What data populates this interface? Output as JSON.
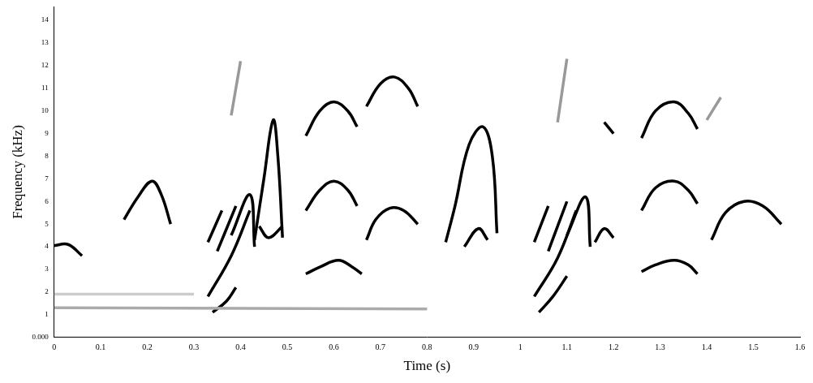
{
  "chart_data": {
    "type": "line",
    "x_label": "Time (s)",
    "y_label": "Frequency (kHz)",
    "xlim": [
      0,
      1.6
    ],
    "xticks": [
      0,
      0.1,
      0.2,
      0.3,
      0.4,
      0.5,
      0.6,
      0.7,
      0.8,
      0.9,
      1,
      1.1,
      1.2,
      1.3,
      1.4,
      1.5,
      1.6
    ],
    "ylim": [
      0,
      14.6
    ],
    "yticks": [
      {
        "value": 0,
        "label": "0.000"
      },
      1,
      2,
      3,
      4,
      5,
      6,
      7,
      8,
      9,
      10,
      11,
      12,
      13,
      14
    ],
    "grid": false,
    "series": [
      {
        "color": "#aaaaaa",
        "x": [
          0,
          0.8
        ],
        "values": [
          1.3,
          1.25
        ]
      },
      {
        "color": "#cccccc",
        "x": [
          0,
          0.3
        ],
        "values": [
          1.9,
          1.9
        ]
      },
      {
        "color": "#000000",
        "x": [
          0,
          0.03,
          0.06
        ],
        "values": [
          4.05,
          4.1,
          3.6
        ]
      },
      {
        "color": "#000000",
        "x": [
          0.15,
          0.18,
          0.21,
          0.23,
          0.25
        ],
        "values": [
          5.2,
          6.2,
          6.9,
          6.3,
          5.0
        ]
      },
      {
        "color": "#000000",
        "x": [
          0.33,
          0.38,
          0.42
        ],
        "values": [
          1.8,
          3.6,
          5.6
        ]
      },
      {
        "color": "#000000",
        "x": [
          0.34,
          0.37,
          0.39
        ],
        "values": [
          1.1,
          1.6,
          2.2
        ]
      },
      {
        "color": "#000000",
        "x": [
          0.33,
          0.36
        ],
        "values": [
          4.2,
          5.6
        ]
      },
      {
        "color": "#000000",
        "x": [
          0.35,
          0.39
        ],
        "values": [
          3.8,
          5.8
        ]
      },
      {
        "color": "#000000",
        "x": [
          0.38,
          0.42,
          0.43
        ],
        "values": [
          4.5,
          6.3,
          4.0
        ]
      },
      {
        "color": "#999999",
        "x": [
          0.38,
          0.4
        ],
        "values": [
          9.8,
          12.2
        ]
      },
      {
        "color": "#000000",
        "x": [
          0.43,
          0.45,
          0.47,
          0.48,
          0.49
        ],
        "values": [
          4.3,
          7.0,
          9.6,
          8.0,
          4.4
        ]
      },
      {
        "color": "#000000",
        "x": [
          0.44,
          0.46,
          0.49
        ],
        "values": [
          4.9,
          4.4,
          4.9
        ]
      },
      {
        "color": "#000000",
        "x": [
          0.54,
          0.57,
          0.6,
          0.63,
          0.65
        ],
        "values": [
          8.9,
          10.0,
          10.4,
          10.0,
          9.3
        ]
      },
      {
        "color": "#000000",
        "x": [
          0.54,
          0.57,
          0.6,
          0.63,
          0.65
        ],
        "values": [
          5.6,
          6.5,
          6.9,
          6.5,
          5.8
        ]
      },
      {
        "color": "#000000",
        "x": [
          0.54,
          0.57,
          0.61,
          0.64,
          0.66
        ],
        "values": [
          2.8,
          3.1,
          3.4,
          3.1,
          2.8
        ]
      },
      {
        "color": "#000000",
        "x": [
          0.67,
          0.69,
          0.72,
          0.75,
          0.78
        ],
        "values": [
          4.3,
          5.2,
          5.7,
          5.6,
          5.0
        ]
      },
      {
        "color": "#000000",
        "x": [
          0.67,
          0.7,
          0.73,
          0.76,
          0.78
        ],
        "values": [
          10.2,
          11.2,
          11.5,
          11.0,
          10.2
        ]
      },
      {
        "color": "#000000",
        "x": [
          0.84,
          0.86,
          0.89,
          0.92,
          0.94,
          0.95
        ],
        "values": [
          4.2,
          5.8,
          8.5,
          9.3,
          8.0,
          4.6
        ]
      },
      {
        "color": "#000000",
        "x": [
          0.88,
          0.91,
          0.93
        ],
        "values": [
          4.0,
          4.8,
          4.3
        ]
      },
      {
        "color": "#000000",
        "x": [
          1.03,
          1.08,
          1.12
        ],
        "values": [
          1.8,
          3.5,
          5.6
        ]
      },
      {
        "color": "#000000",
        "x": [
          1.04,
          1.07,
          1.1
        ],
        "values": [
          1.1,
          1.8,
          2.7
        ]
      },
      {
        "color": "#000000",
        "x": [
          1.03,
          1.06
        ],
        "values": [
          4.2,
          5.8
        ]
      },
      {
        "color": "#000000",
        "x": [
          1.06,
          1.1
        ],
        "values": [
          3.8,
          6.0
        ]
      },
      {
        "color": "#000000",
        "x": [
          1.1,
          1.14,
          1.15
        ],
        "values": [
          4.5,
          6.2,
          4.0
        ]
      },
      {
        "color": "#999999",
        "x": [
          1.08,
          1.1
        ],
        "values": [
          9.5,
          12.3
        ]
      },
      {
        "color": "#000000",
        "x": [
          1.16,
          1.18,
          1.2
        ],
        "values": [
          4.2,
          4.8,
          4.4
        ]
      },
      {
        "color": "#000000",
        "x": [
          1.18,
          1.2
        ],
        "values": [
          9.5,
          9.0
        ]
      },
      {
        "color": "#000000",
        "x": [
          1.26,
          1.29,
          1.33,
          1.36,
          1.38
        ],
        "values": [
          8.8,
          10.0,
          10.4,
          9.9,
          9.2
        ]
      },
      {
        "color": "#000000",
        "x": [
          1.26,
          1.29,
          1.33,
          1.36,
          1.38
        ],
        "values": [
          5.6,
          6.6,
          6.9,
          6.5,
          5.9
        ]
      },
      {
        "color": "#000000",
        "x": [
          1.26,
          1.29,
          1.33,
          1.36,
          1.38
        ],
        "values": [
          2.9,
          3.2,
          3.4,
          3.2,
          2.8
        ]
      },
      {
        "color": "#000000",
        "x": [
          1.41,
          1.44,
          1.48,
          1.52,
          1.56
        ],
        "values": [
          4.3,
          5.5,
          6.0,
          5.8,
          5.0
        ]
      },
      {
        "color": "#999999",
        "x": [
          1.4,
          1.43
        ],
        "values": [
          9.6,
          10.6
        ]
      }
    ]
  }
}
